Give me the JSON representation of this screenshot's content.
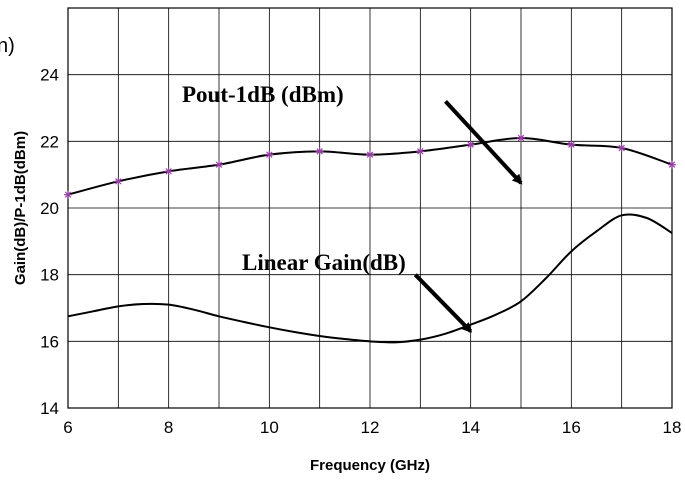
{
  "chart_data": {
    "type": "line",
    "title": "",
    "xlabel": "Frequency (GHz)",
    "ylabel": "Gain(dB)/P-1dB(dBm)",
    "xlim": [
      6,
      18
    ],
    "ylim": [
      14,
      26
    ],
    "xticks": [
      6,
      8,
      10,
      12,
      14,
      16,
      18
    ],
    "yticks": [
      14,
      16,
      18,
      20,
      22,
      24
    ],
    "grid": true,
    "legend": "none",
    "clipped_label_fragment": "n)",
    "series": [
      {
        "name": "Pout-1dB (dBm)",
        "color": "#000000",
        "marker": "asterisk",
        "marker_color": "#9b3fa8",
        "x": [
          6,
          7,
          8,
          9,
          10,
          11,
          12,
          13,
          14,
          15,
          16,
          17,
          18
        ],
        "y": [
          20.4,
          20.8,
          21.1,
          21.3,
          21.6,
          21.7,
          21.6,
          21.7,
          21.9,
          22.1,
          21.9,
          21.8,
          21.3
        ]
      },
      {
        "name": "Linear Gain(dB)",
        "color": "#000000",
        "x": [
          6,
          6.5,
          7,
          7.5,
          8,
          8.5,
          9,
          9.5,
          10,
          10.5,
          11,
          11.5,
          12,
          12.5,
          13,
          13.5,
          14,
          14.5,
          15,
          15.5,
          16,
          16.5,
          17,
          17.5,
          18
        ],
        "y": [
          16.75,
          16.9,
          17.05,
          17.12,
          17.1,
          16.95,
          16.75,
          16.58,
          16.42,
          16.28,
          16.16,
          16.07,
          16.0,
          15.97,
          16.05,
          16.23,
          16.5,
          16.8,
          17.2,
          17.9,
          18.7,
          19.3,
          19.78,
          19.7,
          19.25
        ]
      }
    ],
    "annotations": [
      {
        "text": "Pout-1dB (dBm)",
        "arrow_from": [
          13.5,
          23.2
        ],
        "arrow_to": [
          15.0,
          20.75
        ]
      },
      {
        "text": "Linear Gain(dB)",
        "arrow_from": [
          12.9,
          18.0
        ],
        "arrow_to": [
          14.0,
          16.3
        ]
      }
    ]
  }
}
